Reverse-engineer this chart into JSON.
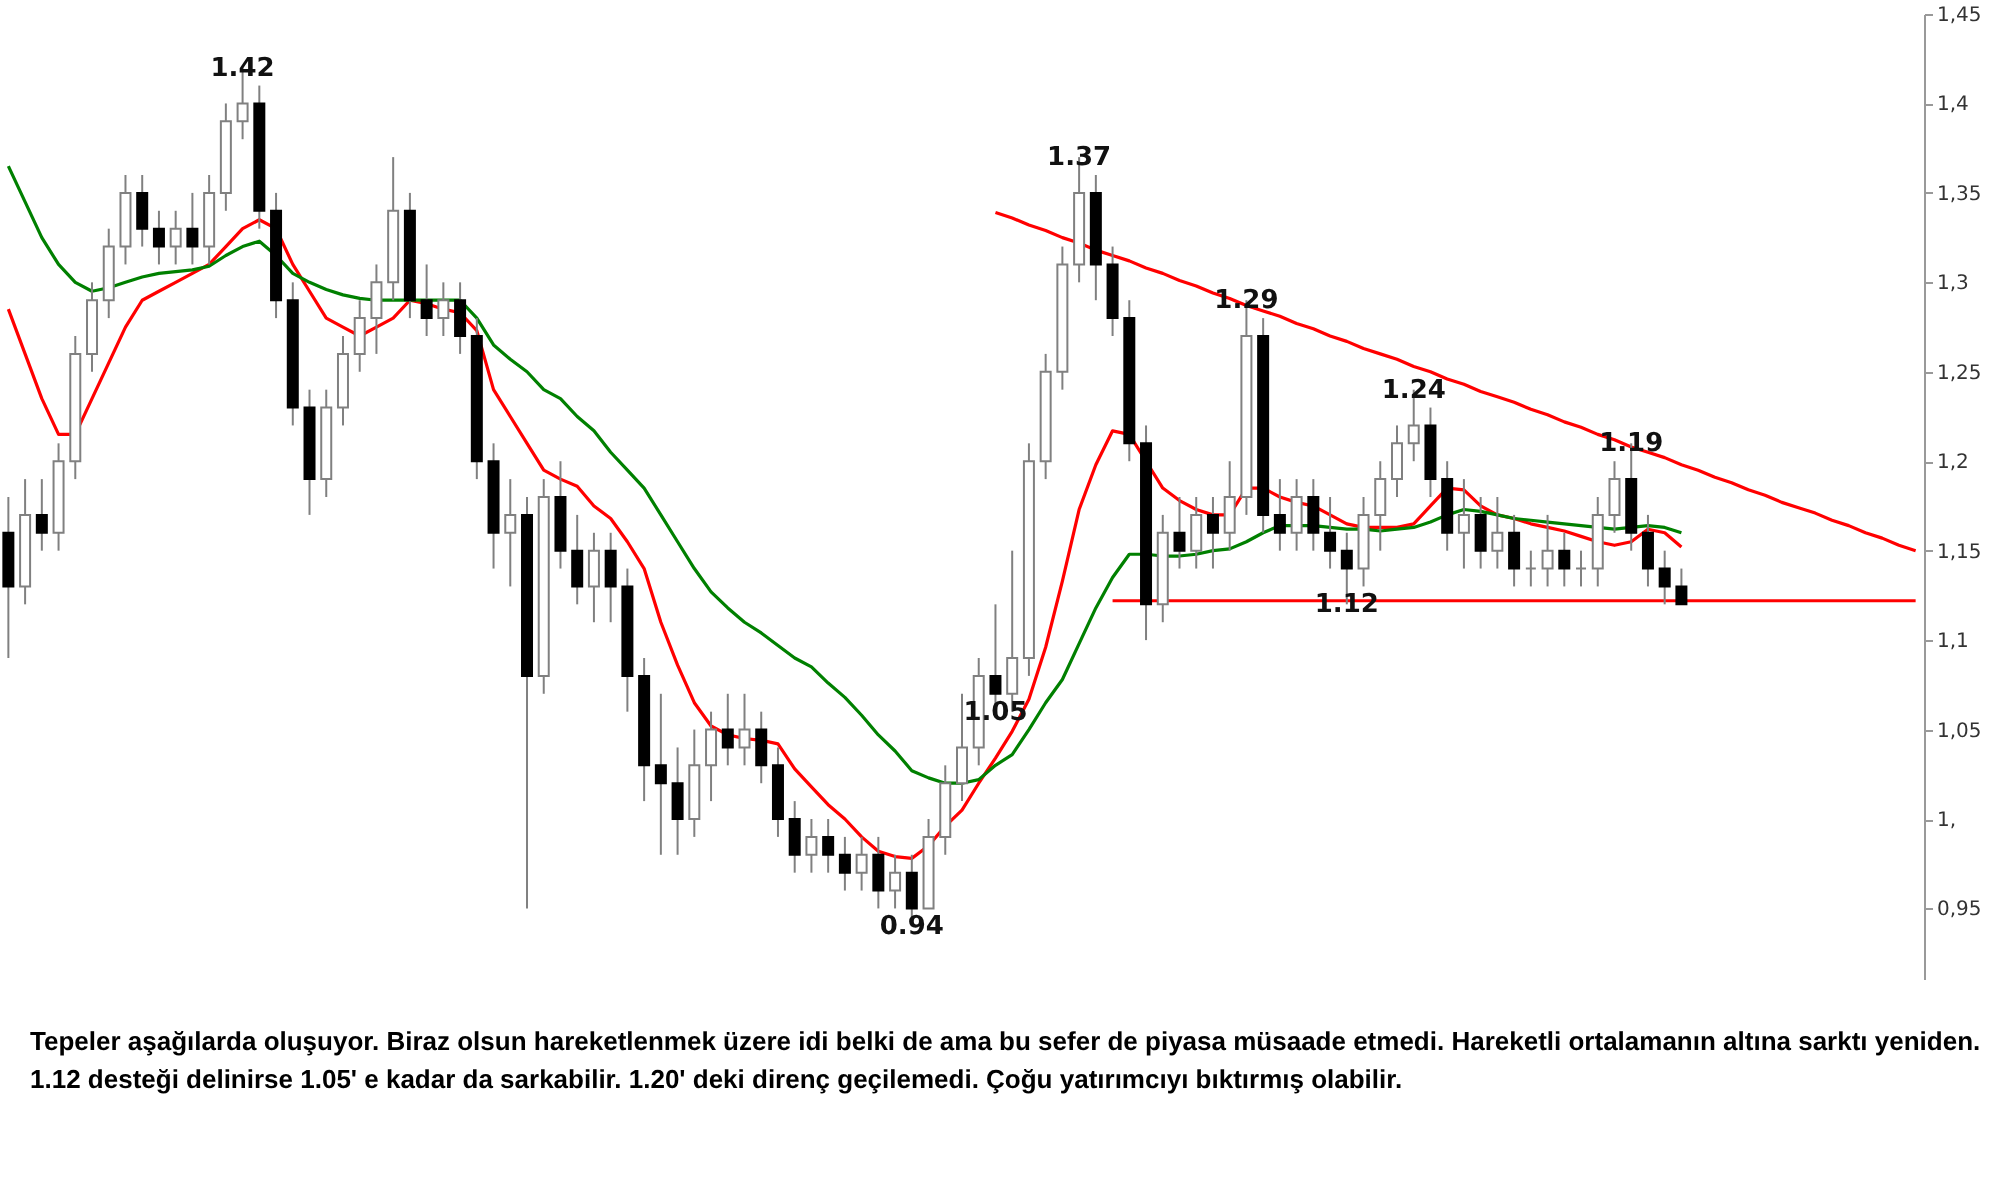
{
  "chart_data": {
    "type": "candlestick",
    "categories": [
      null,
      null,
      null,
      null,
      null,
      null,
      null,
      null,
      null,
      null,
      null,
      null,
      null,
      null,
      null,
      null,
      null,
      null,
      null,
      null,
      null,
      null,
      null,
      null,
      null,
      null,
      null,
      null,
      null,
      null,
      null,
      null,
      null,
      null,
      null,
      null,
      null,
      null,
      null,
      null,
      null,
      null,
      null,
      null,
      null,
      null,
      null,
      null,
      null,
      null,
      null,
      null,
      null,
      null,
      null,
      null,
      null,
      null,
      null,
      null,
      null,
      null,
      null,
      null,
      null,
      null,
      null,
      null,
      null,
      null,
      null,
      null,
      null,
      null,
      null,
      null,
      null,
      null,
      null,
      null,
      null,
      null,
      null,
      null,
      null,
      null,
      null,
      null,
      null,
      null,
      null,
      null,
      null,
      null,
      null,
      null,
      null,
      null,
      null,
      null,
      null,
      null,
      null,
      null,
      null,
      null,
      null,
      null,
      null,
      null,
      null,
      null,
      null,
      null,
      null
    ],
    "ohlc": [
      [
        1.16,
        1.18,
        1.09,
        1.13
      ],
      [
        1.13,
        1.19,
        1.12,
        1.17
      ],
      [
        1.17,
        1.19,
        1.15,
        1.16
      ],
      [
        1.16,
        1.21,
        1.15,
        1.2
      ],
      [
        1.2,
        1.27,
        1.19,
        1.26
      ],
      [
        1.26,
        1.3,
        1.25,
        1.29
      ],
      [
        1.29,
        1.33,
        1.28,
        1.32
      ],
      [
        1.32,
        1.36,
        1.31,
        1.35
      ],
      [
        1.35,
        1.36,
        1.32,
        1.33
      ],
      [
        1.33,
        1.34,
        1.31,
        1.32
      ],
      [
        1.32,
        1.34,
        1.31,
        1.33
      ],
      [
        1.33,
        1.35,
        1.31,
        1.32
      ],
      [
        1.32,
        1.36,
        1.31,
        1.35
      ],
      [
        1.35,
        1.4,
        1.34,
        1.39
      ],
      [
        1.39,
        1.42,
        1.38,
        1.4
      ],
      [
        1.4,
        1.41,
        1.33,
        1.34
      ],
      [
        1.34,
        1.35,
        1.28,
        1.29
      ],
      [
        1.29,
        1.3,
        1.22,
        1.23
      ],
      [
        1.23,
        1.24,
        1.17,
        1.19
      ],
      [
        1.19,
        1.24,
        1.18,
        1.23
      ],
      [
        1.23,
        1.27,
        1.22,
        1.26
      ],
      [
        1.26,
        1.29,
        1.25,
        1.28
      ],
      [
        1.28,
        1.31,
        1.26,
        1.3
      ],
      [
        1.3,
        1.37,
        1.29,
        1.34
      ],
      [
        1.34,
        1.35,
        1.28,
        1.29
      ],
      [
        1.29,
        1.31,
        1.27,
        1.28
      ],
      [
        1.28,
        1.3,
        1.27,
        1.29
      ],
      [
        1.29,
        1.3,
        1.26,
        1.27
      ],
      [
        1.27,
        1.28,
        1.19,
        1.2
      ],
      [
        1.2,
        1.21,
        1.14,
        1.16
      ],
      [
        1.16,
        1.19,
        1.13,
        1.17
      ],
      [
        1.17,
        1.18,
        0.95,
        1.08
      ],
      [
        1.08,
        1.19,
        1.07,
        1.18
      ],
      [
        1.18,
        1.2,
        1.14,
        1.15
      ],
      [
        1.15,
        1.17,
        1.12,
        1.13
      ],
      [
        1.13,
        1.16,
        1.11,
        1.15
      ],
      [
        1.15,
        1.16,
        1.11,
        1.13
      ],
      [
        1.13,
        1.14,
        1.06,
        1.08
      ],
      [
        1.08,
        1.09,
        1.01,
        1.03
      ],
      [
        1.03,
        1.07,
        0.98,
        1.02
      ],
      [
        1.02,
        1.04,
        0.98,
        1.0
      ],
      [
        1.0,
        1.05,
        0.99,
        1.03
      ],
      [
        1.03,
        1.06,
        1.01,
        1.05
      ],
      [
        1.05,
        1.07,
        1.03,
        1.04
      ],
      [
        1.04,
        1.07,
        1.03,
        1.05
      ],
      [
        1.05,
        1.06,
        1.02,
        1.03
      ],
      [
        1.03,
        1.04,
        0.99,
        1.0
      ],
      [
        1.0,
        1.01,
        0.97,
        0.98
      ],
      [
        0.98,
        1.0,
        0.97,
        0.99
      ],
      [
        0.99,
        1.0,
        0.97,
        0.98
      ],
      [
        0.98,
        0.99,
        0.96,
        0.97
      ],
      [
        0.97,
        0.99,
        0.96,
        0.98
      ],
      [
        0.98,
        0.99,
        0.95,
        0.96
      ],
      [
        0.96,
        0.98,
        0.95,
        0.97
      ],
      [
        0.97,
        0.98,
        0.94,
        0.95
      ],
      [
        0.95,
        1.0,
        0.95,
        0.99
      ],
      [
        0.99,
        1.03,
        0.98,
        1.02
      ],
      [
        1.02,
        1.07,
        1.01,
        1.04
      ],
      [
        1.04,
        1.09,
        1.03,
        1.08
      ],
      [
        1.08,
        1.12,
        1.06,
        1.07
      ],
      [
        1.07,
        1.15,
        1.06,
        1.09
      ],
      [
        1.09,
        1.21,
        1.08,
        1.2
      ],
      [
        1.2,
        1.26,
        1.19,
        1.25
      ],
      [
        1.25,
        1.32,
        1.24,
        1.31
      ],
      [
        1.31,
        1.37,
        1.3,
        1.35
      ],
      [
        1.35,
        1.36,
        1.29,
        1.31
      ],
      [
        1.31,
        1.32,
        1.27,
        1.28
      ],
      [
        1.28,
        1.29,
        1.2,
        1.21
      ],
      [
        1.21,
        1.22,
        1.1,
        1.12
      ],
      [
        1.12,
        1.17,
        1.11,
        1.16
      ],
      [
        1.16,
        1.18,
        1.14,
        1.15
      ],
      [
        1.15,
        1.18,
        1.14,
        1.17
      ],
      [
        1.17,
        1.18,
        1.14,
        1.16
      ],
      [
        1.16,
        1.2,
        1.15,
        1.18
      ],
      [
        1.18,
        1.29,
        1.17,
        1.27
      ],
      [
        1.27,
        1.28,
        1.16,
        1.17
      ],
      [
        1.17,
        1.19,
        1.15,
        1.16
      ],
      [
        1.16,
        1.19,
        1.15,
        1.18
      ],
      [
        1.18,
        1.19,
        1.15,
        1.16
      ],
      [
        1.16,
        1.18,
        1.14,
        1.15
      ],
      [
        1.15,
        1.16,
        1.12,
        1.14
      ],
      [
        1.14,
        1.18,
        1.13,
        1.17
      ],
      [
        1.17,
        1.2,
        1.15,
        1.19
      ],
      [
        1.19,
        1.22,
        1.18,
        1.21
      ],
      [
        1.21,
        1.24,
        1.2,
        1.22
      ],
      [
        1.22,
        1.23,
        1.18,
        1.19
      ],
      [
        1.19,
        1.2,
        1.15,
        1.16
      ],
      [
        1.16,
        1.19,
        1.14,
        1.17
      ],
      [
        1.17,
        1.18,
        1.14,
        1.15
      ],
      [
        1.15,
        1.18,
        1.14,
        1.16
      ],
      [
        1.16,
        1.17,
        1.13,
        1.14
      ],
      [
        1.14,
        1.15,
        1.13,
        1.14
      ],
      [
        1.14,
        1.17,
        1.13,
        1.15
      ],
      [
        1.15,
        1.16,
        1.13,
        1.14
      ],
      [
        1.14,
        1.15,
        1.13,
        1.14
      ],
      [
        1.14,
        1.18,
        1.13,
        1.17
      ],
      [
        1.17,
        1.2,
        1.16,
        1.19
      ],
      [
        1.19,
        1.21,
        1.15,
        1.16
      ],
      [
        1.16,
        1.17,
        1.13,
        1.14
      ],
      [
        1.14,
        1.15,
        1.12,
        1.13
      ],
      [
        1.13,
        1.14,
        1.12,
        1.12
      ],
      null,
      null,
      null,
      null,
      null,
      null,
      null,
      null,
      null,
      null,
      null,
      null,
      null,
      null
    ],
    "value_labels": [
      null,
      null,
      null,
      null,
      null,
      null,
      null,
      null,
      null,
      null,
      null,
      null,
      null,
      null,
      "1.42",
      null,
      null,
      null,
      null,
      null,
      null,
      null,
      null,
      null,
      null,
      null,
      null,
      null,
      null,
      null,
      null,
      null,
      null,
      null,
      null,
      null,
      null,
      null,
      null,
      null,
      null,
      null,
      null,
      null,
      null,
      null,
      null,
      null,
      null,
      null,
      null,
      null,
      null,
      null,
      "0.94",
      null,
      null,
      null,
      null,
      "1.05",
      null,
      null,
      null,
      null,
      "1.37",
      null,
      null,
      null,
      null,
      null,
      null,
      null,
      null,
      null,
      "1.29",
      null,
      null,
      null,
      null,
      null,
      "1.12",
      null,
      null,
      null,
      "1.24",
      null,
      null,
      null,
      null,
      null,
      null,
      null,
      null,
      null,
      null,
      null,
      null,
      "1.19",
      null,
      null,
      null,
      null,
      null,
      null,
      null,
      null,
      null,
      null,
      null,
      null,
      null,
      null,
      null,
      null,
      null
    ],
    "series": [
      {
        "type": "line",
        "color": "#ff0000",
        "values": [
          1.285,
          1.26,
          1.235,
          1.215,
          1.215,
          1.235,
          1.255,
          1.275,
          1.29,
          1.295,
          1.3,
          1.305,
          1.31,
          1.32,
          1.33,
          1.335,
          1.33,
          1.31,
          1.295,
          1.28,
          1.275,
          1.27,
          1.275,
          1.28,
          1.29,
          1.288,
          1.285,
          1.283,
          1.273,
          1.24,
          1.225,
          1.21,
          1.195,
          1.19,
          1.186,
          1.175,
          1.168,
          1.155,
          1.14,
          1.11,
          1.086,
          1.065,
          1.052,
          1.047,
          1.045,
          1.044,
          1.042,
          1.028,
          1.018,
          1.008,
          1.0,
          0.99,
          0.982,
          0.979,
          0.978,
          0.985,
          0.996,
          1.005,
          1.02,
          1.034,
          1.049,
          1.067,
          1.096,
          1.133,
          1.173,
          1.198,
          1.217,
          1.215,
          1.2,
          1.185,
          1.178,
          1.173,
          1.17,
          1.17,
          1.185,
          1.185,
          1.18,
          1.177,
          1.175,
          1.17,
          1.165,
          1.163,
          1.163,
          1.163,
          1.165,
          1.175,
          1.185,
          1.184,
          1.175,
          1.17,
          1.168,
          1.165,
          1.163,
          1.161,
          1.158,
          1.155,
          1.153,
          1.155,
          1.162,
          1.16,
          1.152,
          null,
          null,
          null,
          null,
          null,
          null,
          null,
          null,
          null,
          null,
          null,
          null,
          null,
          null
        ]
      },
      {
        "type": "line",
        "color": "#008000",
        "values": [
          1.365,
          1.345,
          1.325,
          1.31,
          1.3,
          1.295,
          1.297,
          1.3,
          1.303,
          1.305,
          1.306,
          1.307,
          1.309,
          1.315,
          1.32,
          1.323,
          1.315,
          1.305,
          1.3,
          1.296,
          1.293,
          1.291,
          1.29,
          1.29,
          1.29,
          1.29,
          1.29,
          1.29,
          1.28,
          1.265,
          1.257,
          1.25,
          1.24,
          1.235,
          1.225,
          1.217,
          1.205,
          1.195,
          1.185,
          1.17,
          1.155,
          1.14,
          1.127,
          1.118,
          1.11,
          1.104,
          1.097,
          1.09,
          1.085,
          1.076,
          1.068,
          1.058,
          1.047,
          1.038,
          1.027,
          1.023,
          1.02,
          1.02,
          1.022,
          1.03,
          1.036,
          1.05,
          1.065,
          1.078,
          1.098,
          1.118,
          1.135,
          1.148,
          1.148,
          1.147,
          1.147,
          1.148,
          1.15,
          1.151,
          1.155,
          1.16,
          1.164,
          1.164,
          1.164,
          1.163,
          1.162,
          1.162,
          1.161,
          1.162,
          1.163,
          1.166,
          1.17,
          1.173,
          1.172,
          1.17,
          1.168,
          1.167,
          1.166,
          1.165,
          1.164,
          1.163,
          1.162,
          1.163,
          1.164,
          1.163,
          1.16,
          null,
          null,
          null,
          null,
          null,
          null,
          null,
          null,
          null,
          null,
          null,
          null,
          null,
          null
        ]
      },
      {
        "type": "line",
        "color": "#ff0000",
        "values": [
          null,
          null,
          null,
          null,
          null,
          null,
          null,
          null,
          null,
          null,
          null,
          null,
          null,
          null,
          null,
          null,
          null,
          null,
          null,
          null,
          null,
          null,
          null,
          null,
          null,
          null,
          null,
          null,
          null,
          null,
          null,
          null,
          null,
          null,
          null,
          null,
          null,
          null,
          null,
          null,
          null,
          null,
          null,
          null,
          null,
          null,
          null,
          null,
          null,
          null,
          null,
          null,
          null,
          null,
          null,
          null,
          null,
          null,
          null,
          1.339,
          1.336,
          1.332,
          1.329,
          1.325,
          1.322,
          1.318,
          1.315,
          1.312,
          1.308,
          1.305,
          1.301,
          1.298,
          1.294,
          1.291,
          1.287,
          1.284,
          1.281,
          1.277,
          1.274,
          1.27,
          1.267,
          1.263,
          1.26,
          1.257,
          1.253,
          1.25,
          1.246,
          1.243,
          1.239,
          1.236,
          1.233,
          1.229,
          1.226,
          1.222,
          1.219,
          1.215,
          1.212,
          1.208,
          1.205,
          1.202,
          1.198,
          1.195,
          1.191,
          1.188,
          1.184,
          1.181,
          1.177,
          1.174,
          1.171,
          1.167,
          1.164,
          1.16,
          1.157,
          1.153,
          1.15
        ]
      },
      {
        "type": "line",
        "color": "#ff0000",
        "values": [
          null,
          null,
          null,
          null,
          null,
          null,
          null,
          null,
          null,
          null,
          null,
          null,
          null,
          null,
          null,
          null,
          null,
          null,
          null,
          null,
          null,
          null,
          null,
          null,
          null,
          null,
          null,
          null,
          null,
          null,
          null,
          null,
          null,
          null,
          null,
          null,
          null,
          null,
          null,
          null,
          null,
          null,
          null,
          null,
          null,
          null,
          null,
          null,
          null,
          null,
          null,
          null,
          null,
          null,
          null,
          null,
          null,
          null,
          null,
          null,
          null,
          null,
          null,
          null,
          null,
          null,
          1.122,
          1.122,
          1.122,
          1.122,
          1.122,
          1.122,
          1.122,
          1.122,
          1.122,
          1.122,
          1.122,
          1.122,
          1.122,
          1.122,
          1.122,
          1.122,
          1.122,
          1.122,
          1.122,
          1.122,
          1.122,
          1.122,
          1.122,
          1.122,
          1.122,
          1.122,
          1.122,
          1.122,
          1.122,
          1.122,
          1.122,
          1.122,
          1.122,
          1.122,
          1.122,
          1.122,
          1.122,
          1.122,
          1.122,
          1.122,
          1.122,
          1.122,
          1.122,
          1.122,
          1.122,
          1.122,
          1.122,
          1.122,
          1.122
        ]
      }
    ],
    "ylim": [
      0.91,
      1.45
    ],
    "yticks": [
      {
        "value": 0.95,
        "label": "0,95"
      },
      {
        "value": 1.0,
        "label": "1,"
      },
      {
        "value": 1.05,
        "label": "1,05"
      },
      {
        "value": 1.1,
        "label": "1,1"
      },
      {
        "value": 1.15,
        "label": "1,15"
      },
      {
        "value": 1.2,
        "label": "1,2"
      },
      {
        "value": 1.25,
        "label": "1,25"
      },
      {
        "value": 1.3,
        "label": "1,3"
      },
      {
        "value": 1.35,
        "label": "1,35"
      },
      {
        "value": 1.4,
        "label": "1,4"
      },
      {
        "value": 1.45,
        "label": "1,45"
      }
    ],
    "tick_labels": "y",
    "annotations": [
      "Tepeler aşağılarda oluşuyor. Biraz olsun hareketlenmek üzere idi belki de ama bu sefer de piyasa müsaade etmedi. Hareketli ortalamanın altına sarktı yeniden. 1.12 desteği delinirse 1.05' e kadar da sarkabilir. 1.20' deki direnç geçilemedi. Çoğu yatırımcıyı bıktırmış olabilir."
    ]
  }
}
